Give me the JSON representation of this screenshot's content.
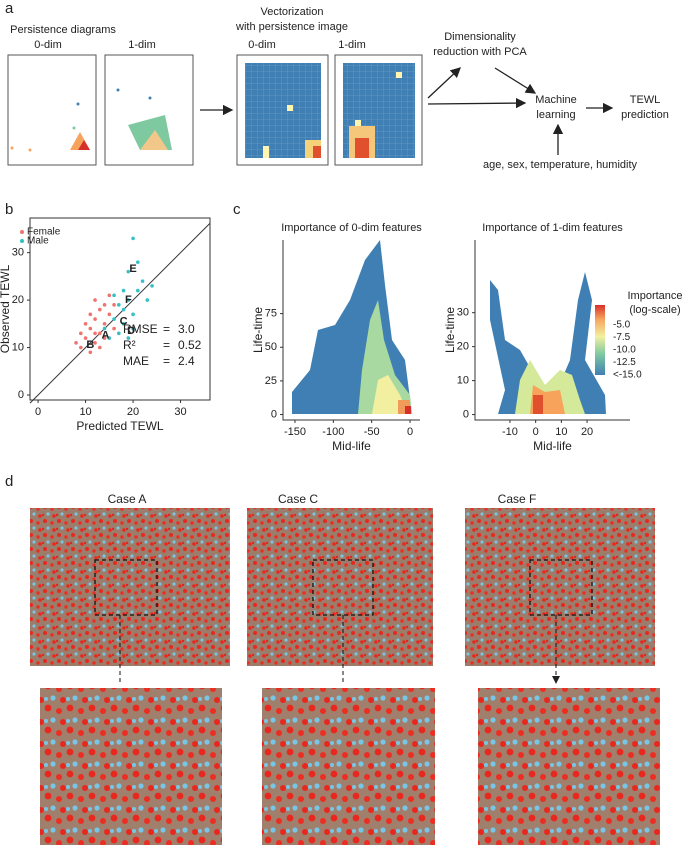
{
  "panel_a": {
    "label": "a",
    "title": "Persistence diagrams",
    "dims": [
      "0-dim",
      "1-dim"
    ],
    "vector_title": [
      "Vectorization",
      "with persistence image"
    ],
    "vector_dims": [
      "0-dim",
      "1-dim"
    ],
    "pca": [
      "Dimensionality",
      "reduction with PCA"
    ],
    "ml": [
      "Machine",
      "learning"
    ],
    "pred": [
      "TEWL",
      "prediction"
    ],
    "covariates": "age, sex, temperature, humidity"
  },
  "panel_b": {
    "label": "b",
    "type": "scatter",
    "x_label": "Predicted TEWL",
    "y_label": "Observed TEWL",
    "xlim": [
      -1.7,
      36.2
    ],
    "ylim": [
      -1.05,
      37.3
    ],
    "xticks": [
      0,
      10,
      20,
      30
    ],
    "yticks": [
      0,
      10,
      20,
      30
    ],
    "series": [
      {
        "name": "Female",
        "color": "#f0736f",
        "x": [
          9,
          10,
          11,
          11,
          12,
          12,
          13,
          13,
          14,
          14,
          10,
          12,
          15,
          16,
          9,
          13,
          11,
          15,
          14,
          12,
          8,
          16
        ],
        "y": [
          10,
          12,
          9,
          14,
          11,
          16,
          13,
          18,
          12,
          15,
          15,
          20,
          17,
          14,
          13,
          10,
          17,
          21,
          19,
          13,
          11,
          19
        ]
      },
      {
        "name": "Male",
        "color": "#35bfc6",
        "x": [
          14,
          16,
          17,
          18,
          19,
          20,
          21,
          19,
          20,
          22,
          18,
          17,
          15,
          20,
          23,
          24,
          18,
          21,
          16,
          19
        ],
        "y": [
          14,
          16,
          13,
          18,
          20,
          17,
          22,
          26,
          33,
          24,
          15,
          19,
          12,
          14,
          20,
          23,
          22,
          28,
          21,
          12
        ]
      }
    ],
    "annotations": [
      {
        "text": "E",
        "x": 20,
        "y": 26.5
      },
      {
        "text": "F",
        "x": 19,
        "y": 20
      },
      {
        "text": "C",
        "x": 18,
        "y": 15.5
      },
      {
        "text": "D",
        "x": 19.6,
        "y": 13.5
      },
      {
        "text": "A",
        "x": 14.2,
        "y": 12.5
      },
      {
        "text": "B",
        "x": 11,
        "y": 10.5
      }
    ],
    "stats": [
      [
        "RMSE",
        "=",
        "3.0"
      ],
      [
        "R²",
        "=",
        "0.52"
      ],
      [
        "MAE",
        "=",
        "2.4"
      ]
    ]
  },
  "panel_c": {
    "label": "c",
    "plots": [
      {
        "title": "Importance of 0-dim features",
        "x_label": "Mid-life",
        "y_label": "Life-time",
        "xlim": [
          -165.6,
          13
        ],
        "ylim": [
          -4.05,
          129.7
        ],
        "xticks": [
          -150,
          -100,
          -50,
          0
        ],
        "yticks": [
          0,
          25,
          50,
          75
        ]
      },
      {
        "title": "Importance of 1-dim features",
        "x_label": "Mid-life",
        "y_label": "Life-time",
        "xlim": [
          -23.6,
          36.7
        ],
        "ylim": [
          -1.6,
          51.4
        ],
        "xticks": [
          -10,
          0,
          10,
          20
        ],
        "yticks": [
          0,
          10,
          20,
          30
        ]
      }
    ],
    "legend_title": [
      "Importance",
      "(log-scale)"
    ],
    "legend_labels": [
      "-5.0",
      "-7.5",
      "-10.0",
      "-12.5",
      "<-15.0"
    ]
  },
  "panel_d": {
    "label": "d",
    "cases": [
      "Case A",
      "Case C",
      "Case F"
    ]
  }
}
